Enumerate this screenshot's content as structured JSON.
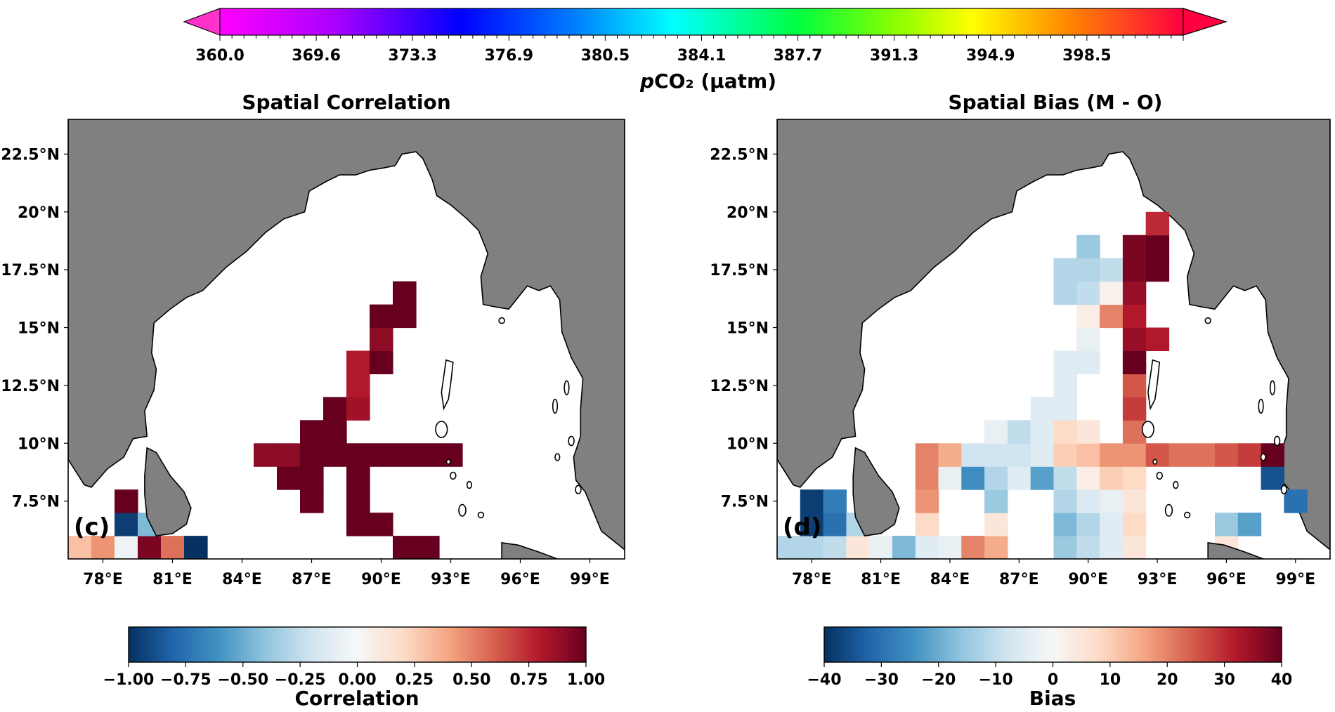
{
  "colors": {
    "land": "#808080",
    "ocean": "#ffffff",
    "nan_cell": "#ffffff",
    "pco2_under": "#ff33cc",
    "pco2_over": "#ff0040"
  },
  "top_colorbar": {
    "label_prefix": "p",
    "label_rest": "CO₂ (µatm)",
    "ticks": [
      "360.0",
      "369.6",
      "373.3",
      "376.9",
      "380.5",
      "384.1",
      "387.7",
      "391.3",
      "394.9",
      "398.5"
    ],
    "extend": "both",
    "colormap": "gist_rainbow"
  },
  "lon_ticks": [
    "78°E",
    "81°E",
    "84°E",
    "87°E",
    "90°E",
    "93°E",
    "96°E",
    "99°E"
  ],
  "lon_values": [
    78,
    81,
    84,
    87,
    90,
    93,
    96,
    99
  ],
  "lat_ticks": [
    "22.5°N",
    "20°N",
    "17.5°N",
    "15°N",
    "12.5°N",
    "10°N",
    "7.5°N"
  ],
  "lat_values": [
    22.5,
    20,
    17.5,
    15,
    12.5,
    10,
    7.5
  ],
  "extent": {
    "lon": [
      76.5,
      100.5
    ],
    "lat": [
      5,
      24
    ]
  },
  "panels": [
    {
      "key": "correlation",
      "title": "Spatial Correlation",
      "letter": "(c)",
      "colorbar": {
        "label": "Correlation",
        "ticks": [
          "−1.00",
          "−0.75",
          "−0.50",
          "−0.25",
          "0.00",
          "0.25",
          "0.50",
          "0.75",
          "1.00"
        ],
        "vmin": -1,
        "vmax": 1,
        "colormap": "RdBu_r"
      },
      "cells": [
        [
          76.5,
          5,
          0.3
        ],
        [
          77.5,
          5,
          0.45
        ],
        [
          78.5,
          5,
          -0.05
        ],
        [
          79.5,
          5,
          0.95
        ],
        [
          80.5,
          5,
          0.55
        ],
        [
          81.5,
          5,
          -1.0
        ],
        [
          78.5,
          6,
          -0.95
        ],
        [
          79.5,
          6,
          -0.45
        ],
        [
          78.5,
          7,
          1.0
        ],
        [
          90.5,
          5,
          1.0
        ],
        [
          91.5,
          5,
          1.0
        ],
        [
          88.5,
          6,
          1.0
        ],
        [
          89.5,
          6,
          1.0
        ],
        [
          88.5,
          7,
          1.0
        ],
        [
          86.5,
          7,
          1.0
        ],
        [
          88.5,
          8,
          1.0
        ],
        [
          85.5,
          8,
          1.0
        ],
        [
          86.5,
          8,
          1.0
        ],
        [
          84.5,
          9,
          0.9
        ],
        [
          85.5,
          9,
          0.9
        ],
        [
          86.5,
          9,
          1.0
        ],
        [
          87.5,
          9,
          1.0
        ],
        [
          88.5,
          9,
          1.0
        ],
        [
          89.5,
          9,
          1.0
        ],
        [
          90.5,
          9,
          1.0
        ],
        [
          91.5,
          9,
          1.0
        ],
        [
          92.5,
          9,
          1.0
        ],
        [
          86.5,
          10,
          1.0
        ],
        [
          87.5,
          10,
          1.0
        ],
        [
          87.5,
          11,
          1.0
        ],
        [
          88.5,
          11,
          0.85
        ],
        [
          88.5,
          12,
          0.8
        ],
        [
          88.5,
          13,
          0.8
        ],
        [
          89.5,
          13,
          1.0
        ],
        [
          89.5,
          14,
          0.9
        ],
        [
          89.5,
          15,
          1.0
        ],
        [
          90.5,
          15,
          1.0
        ],
        [
          90.5,
          16,
          1.0
        ]
      ]
    },
    {
      "key": "bias",
      "title": "Spatial Bias (M - O)",
      "letter": "(d)",
      "colorbar": {
        "label": "Bias",
        "ticks": [
          "−40",
          "−30",
          "−20",
          "−10",
          "0",
          "10",
          "20",
          "30",
          "40"
        ],
        "vmin": -40,
        "vmax": 40,
        "colormap": "RdBu_r"
      },
      "cells": [
        [
          76.5,
          5,
          -12
        ],
        [
          77.5,
          5,
          -12
        ],
        [
          78.5,
          5,
          -10
        ],
        [
          79.5,
          5,
          5
        ],
        [
          80.5,
          5,
          -3
        ],
        [
          81.5,
          5,
          -18
        ],
        [
          82.5,
          5,
          -5
        ],
        [
          83.5,
          5,
          -3
        ],
        [
          84.5,
          5,
          20
        ],
        [
          85.5,
          5,
          15
        ],
        [
          88.5,
          5,
          -15
        ],
        [
          89.5,
          5,
          -10
        ],
        [
          90.5,
          5,
          -5
        ],
        [
          91.5,
          5,
          5
        ],
        [
          95.5,
          5,
          5
        ],
        [
          77.5,
          6,
          -38
        ],
        [
          78.5,
          6,
          -30
        ],
        [
          79.5,
          6,
          -12
        ],
        [
          82.5,
          6,
          8
        ],
        [
          85.5,
          6,
          5
        ],
        [
          88.5,
          6,
          -18
        ],
        [
          89.5,
          6,
          -12
        ],
        [
          90.5,
          6,
          -5
        ],
        [
          91.5,
          6,
          8
        ],
        [
          95.5,
          6,
          -15
        ],
        [
          96.5,
          6,
          -22
        ],
        [
          77.5,
          7,
          -38
        ],
        [
          78.5,
          7,
          -28
        ],
        [
          82.5,
          7,
          18
        ],
        [
          85.5,
          7,
          -15
        ],
        [
          88.5,
          7,
          -12
        ],
        [
          89.5,
          7,
          -6
        ],
        [
          90.5,
          7,
          -3
        ],
        [
          91.5,
          7,
          5
        ],
        [
          98.5,
          7,
          -30
        ],
        [
          82.5,
          8,
          20
        ],
        [
          83.5,
          8,
          -3
        ],
        [
          84.5,
          8,
          -25
        ],
        [
          85.5,
          8,
          -12
        ],
        [
          86.5,
          8,
          -5
        ],
        [
          87.5,
          8,
          -22
        ],
        [
          88.5,
          8,
          -10
        ],
        [
          89.5,
          8,
          3
        ],
        [
          90.5,
          8,
          10
        ],
        [
          91.5,
          8,
          8
        ],
        [
          97.5,
          8,
          -35
        ],
        [
          82.5,
          9,
          20
        ],
        [
          83.5,
          9,
          15
        ],
        [
          84.5,
          9,
          -8
        ],
        [
          85.5,
          9,
          -8
        ],
        [
          86.5,
          9,
          -8
        ],
        [
          87.5,
          9,
          -5
        ],
        [
          88.5,
          9,
          10
        ],
        [
          89.5,
          9,
          12
        ],
        [
          90.5,
          9,
          18
        ],
        [
          91.5,
          9,
          18
        ],
        [
          92.5,
          9,
          25
        ],
        [
          93.5,
          9,
          22
        ],
        [
          94.5,
          9,
          22
        ],
        [
          95.5,
          9,
          25
        ],
        [
          96.5,
          9,
          28
        ],
        [
          97.5,
          9,
          40
        ],
        [
          85.5,
          10,
          -3
        ],
        [
          86.5,
          10,
          -10
        ],
        [
          87.5,
          10,
          -5
        ],
        [
          88.5,
          10,
          8
        ],
        [
          89.5,
          10,
          5
        ],
        [
          91.5,
          10,
          22
        ],
        [
          87.5,
          11,
          -5
        ],
        [
          88.5,
          11,
          -5
        ],
        [
          91.5,
          11,
          28
        ],
        [
          88.5,
          12,
          -5
        ],
        [
          91.5,
          12,
          25
        ],
        [
          88.5,
          13,
          -5
        ],
        [
          89.5,
          13,
          -5
        ],
        [
          91.5,
          13,
          40
        ],
        [
          89.5,
          14,
          -3
        ],
        [
          91.5,
          14,
          35
        ],
        [
          92.5,
          14,
          32
        ],
        [
          89.5,
          15,
          3
        ],
        [
          90.5,
          15,
          20
        ],
        [
          91.5,
          15,
          32
        ],
        [
          88.5,
          16,
          -12
        ],
        [
          89.5,
          16,
          -10
        ],
        [
          90.5,
          16,
          2
        ],
        [
          91.5,
          16,
          35
        ],
        [
          88.5,
          17,
          -12
        ],
        [
          89.5,
          17,
          -12
        ],
        [
          90.5,
          17,
          -10
        ],
        [
          91.5,
          17,
          38
        ],
        [
          92.5,
          17,
          40
        ],
        [
          89.5,
          18,
          -15
        ],
        [
          91.5,
          18,
          38
        ],
        [
          92.5,
          18,
          40
        ],
        [
          92.5,
          19,
          30
        ]
      ]
    }
  ]
}
